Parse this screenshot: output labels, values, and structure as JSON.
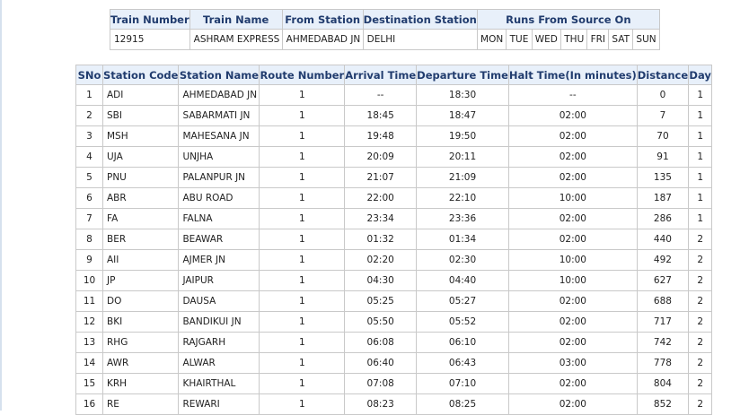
{
  "train_info": {
    "headers": [
      "Train Number",
      "Train Name",
      "From Station",
      "Destination Station",
      "Runs From Source On"
    ],
    "train_number": "12915",
    "train_name": "ASHRAM EXPRESS",
    "from_station": "AHMEDABAD JN",
    "destination_station": "DELHI",
    "days": [
      "MON",
      "TUE",
      "WED",
      "THU",
      "FRI",
      "SAT",
      "SUN"
    ]
  },
  "schedule": {
    "headers": [
      "SNo",
      "Station Code",
      "Station Name",
      "Route Number",
      "Arrival Time",
      "Departure Time",
      "Halt Time(In minutes)",
      "Distance",
      "Day"
    ],
    "rows": [
      [
        "1",
        "ADI",
        "AHMEDABAD JN",
        "1",
        "--",
        "18:30",
        "--",
        "0",
        "1"
      ],
      [
        "2",
        "SBI",
        "SABARMATI JN",
        "1",
        "18:45",
        "18:47",
        "02:00",
        "7",
        "1"
      ],
      [
        "3",
        "MSH",
        "MAHESANA JN",
        "1",
        "19:48",
        "19:50",
        "02:00",
        "70",
        "1"
      ],
      [
        "4",
        "UJA",
        "UNJHA",
        "1",
        "20:09",
        "20:11",
        "02:00",
        "91",
        "1"
      ],
      [
        "5",
        "PNU",
        "PALANPUR JN",
        "1",
        "21:07",
        "21:09",
        "02:00",
        "135",
        "1"
      ],
      [
        "6",
        "ABR",
        "ABU ROAD",
        "1",
        "22:00",
        "22:10",
        "10:00",
        "187",
        "1"
      ],
      [
        "7",
        "FA",
        "FALNA",
        "1",
        "23:34",
        "23:36",
        "02:00",
        "286",
        "1"
      ],
      [
        "8",
        "BER",
        "BEAWAR",
        "1",
        "01:32",
        "01:34",
        "02:00",
        "440",
        "2"
      ],
      [
        "9",
        "AII",
        "AJMER JN",
        "1",
        "02:20",
        "02:30",
        "10:00",
        "492",
        "2"
      ],
      [
        "10",
        "JP",
        "JAIPUR",
        "1",
        "04:30",
        "04:40",
        "10:00",
        "627",
        "2"
      ],
      [
        "11",
        "DO",
        "DAUSA",
        "1",
        "05:25",
        "05:27",
        "02:00",
        "688",
        "2"
      ],
      [
        "12",
        "BKI",
        "BANDIKUI JN",
        "1",
        "05:50",
        "05:52",
        "02:00",
        "717",
        "2"
      ],
      [
        "13",
        "RHG",
        "RAJGARH",
        "1",
        "06:08",
        "06:10",
        "02:00",
        "742",
        "2"
      ],
      [
        "14",
        "AWR",
        "ALWAR",
        "1",
        "06:40",
        "06:43",
        "03:00",
        "778",
        "2"
      ],
      [
        "15",
        "KRH",
        "KHAIRTHAL",
        "1",
        "07:08",
        "07:10",
        "02:00",
        "804",
        "2"
      ],
      [
        "16",
        "RE",
        "REWARI",
        "1",
        "08:23",
        "08:25",
        "02:00",
        "852",
        "2"
      ]
    ]
  }
}
